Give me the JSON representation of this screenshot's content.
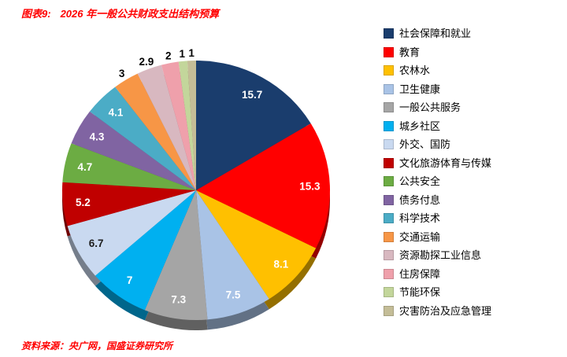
{
  "header": {
    "tag": "图表9:",
    "title": "2026 年一般公共财政支出结构预算",
    "accent_color": "#FF0000"
  },
  "footer": {
    "label": "资料来源：",
    "text": "央广网，国盛证券研究所"
  },
  "chart_data": {
    "type": "pie",
    "style": "3d",
    "start_angle_deg": 0,
    "direction": "clockwise",
    "legend_position": "right",
    "data_labels": "values shown on/near slices",
    "series": [
      {
        "name": "社会保障和就业",
        "value": 15.7,
        "color": "#1A3D6D"
      },
      {
        "name": "教育",
        "value": 15.3,
        "color": "#FF0000"
      },
      {
        "name": "农林水",
        "value": 8.1,
        "color": "#FFC000"
      },
      {
        "name": "卫生健康",
        "value": 7.5,
        "color": "#A9C3E6"
      },
      {
        "name": "一般公共服务",
        "value": 7.3,
        "color": "#A5A5A5"
      },
      {
        "name": "城乡社区",
        "value": 7,
        "color": "#00B0F0"
      },
      {
        "name": "外交、国防",
        "value": 6.7,
        "color": "#C9D9F0"
      },
      {
        "name": "文化旅游体育与传媒",
        "value": 5.2,
        "color": "#C00000"
      },
      {
        "name": "公共安全",
        "value": 4.7,
        "color": "#6CAC43"
      },
      {
        "name": "债务付息",
        "value": 4.3,
        "color": "#8064A2"
      },
      {
        "name": "科学技术",
        "value": 4.1,
        "color": "#4BACC6"
      },
      {
        "name": "交通运输",
        "value": 3,
        "color": "#F79646"
      },
      {
        "name": "资源勘探工业信息",
        "value": 2.9,
        "color": "#D8B8C0"
      },
      {
        "name": "住房保障",
        "value": 2,
        "color": "#EFA0AB"
      },
      {
        "name": "节能环保",
        "value": 1,
        "color": "#C3D69B"
      },
      {
        "name": "灾害防治及应急管理",
        "value": 1,
        "color": "#C4BD97"
      }
    ]
  }
}
